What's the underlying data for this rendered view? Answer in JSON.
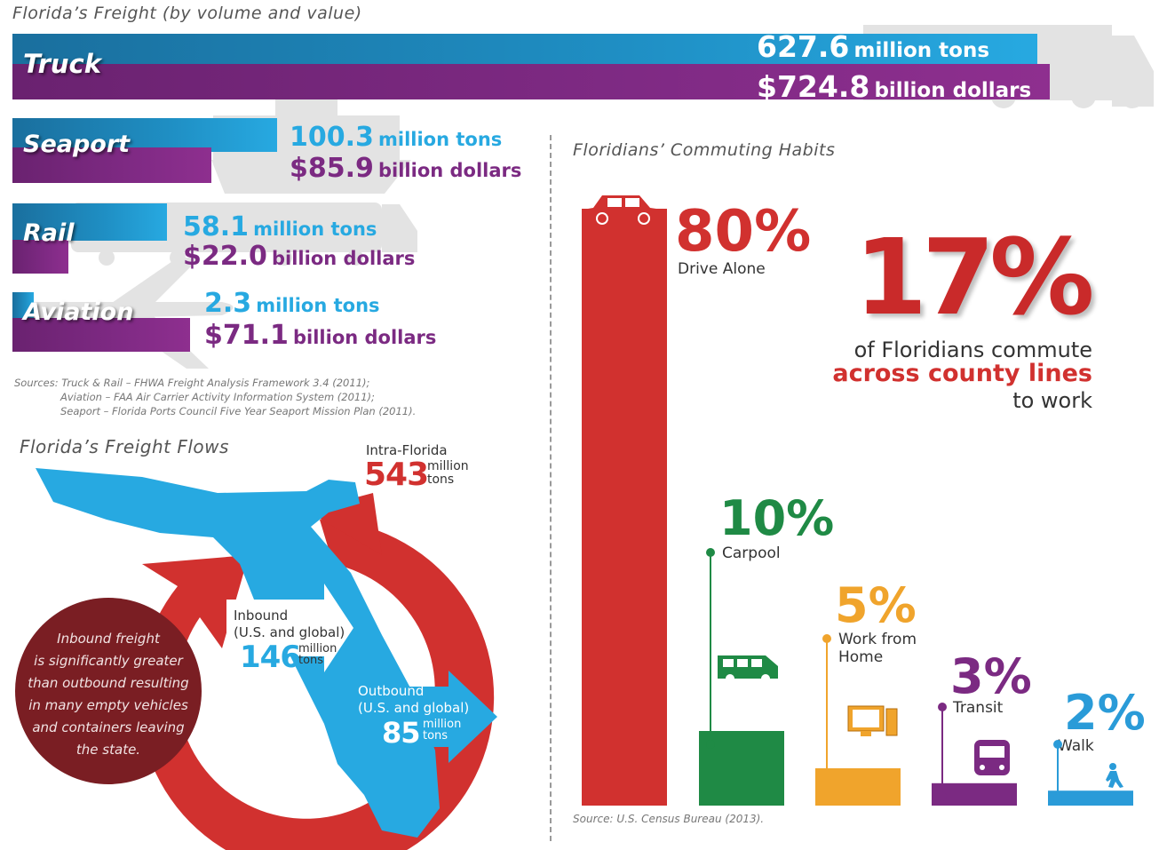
{
  "freight": {
    "title": "Florida’s Freight (by volume and value)",
    "modes": [
      {
        "name": "Truck",
        "tons_num": "627.6",
        "tons_unit": "million tons",
        "dollars_num": "$724.8",
        "dollars_unit": "billion dollars"
      },
      {
        "name": "Seaport",
        "tons_num": "100.3",
        "tons_unit": "million tons",
        "dollars_num": "$85.9",
        "dollars_unit": "billion dollars"
      },
      {
        "name": "Rail",
        "tons_num": "58.1",
        "tons_unit": "million tons",
        "dollars_num": "$22.0",
        "dollars_unit": "billion dollars"
      },
      {
        "name": "Aviation",
        "tons_num": "2.3",
        "tons_unit": "million tons",
        "dollars_num": "$71.1",
        "dollars_unit": "billion dollars"
      }
    ],
    "sources": [
      "Sources: Truck & Rail – FHWA Freight Analysis Framework 3.4 (2011);",
      "Aviation – FAA Air Carrier Activity Information System (2011);",
      "Seaport – Florida Ports Council Five Year Seaport Mission Plan (2011)."
    ]
  },
  "flows": {
    "title": "Florida’s Freight Flows",
    "intra_label": "Intra-Florida",
    "intra_value": "543",
    "intra_unit_1": "million",
    "intra_unit_2": "tons",
    "inbound_label_1": "Inbound",
    "inbound_label_2": "(U.S. and global)",
    "inbound_value": "146",
    "inbound_unit_1": "million",
    "inbound_unit_2": "tons",
    "outbound_label_1": "Outbound",
    "outbound_label_2": "(U.S. and global)",
    "outbound_value": "85",
    "outbound_unit_1": "million",
    "outbound_unit_2": "tons",
    "note_lines": [
      "Inbound freight",
      "is significantly greater",
      "than outbound resulting",
      "in many empty vehicles",
      "and containers leaving",
      "the state."
    ]
  },
  "commute": {
    "title": "Floridians’ Commuting Habits",
    "headline_pct": "17%",
    "headline_line1": "of Floridians commute",
    "headline_line2": "across county lines",
    "headline_line3": "to work",
    "source": "Source: U.S. Census Bureau (2013)."
  },
  "colors": {
    "blue": "#27a9e1",
    "purple": "#7b2a82",
    "red": "#d1312f",
    "green": "#1f8a45",
    "orange": "#f0a42c",
    "walk_blue": "#2a9bd8",
    "note_bg": "#7a1e23"
  },
  "chart_data": [
    {
      "type": "bar",
      "title": "Florida’s Freight (by volume and value)",
      "categories": [
        "Truck",
        "Seaport",
        "Rail",
        "Aviation"
      ],
      "series": [
        {
          "name": "million tons",
          "values": [
            627.6,
            100.3,
            58.1,
            2.3
          ]
        },
        {
          "name": "billion dollars",
          "values": [
            724.8,
            85.9,
            22.0,
            71.1
          ]
        }
      ]
    },
    {
      "type": "bar",
      "title": "Floridians’ Commuting Habits",
      "categories": [
        "Drive Alone",
        "Carpool",
        "Work from Home",
        "Transit",
        "Walk"
      ],
      "values": [
        80,
        10,
        5,
        3,
        2
      ],
      "value_labels": [
        "80%",
        "10%",
        "5%",
        "3%",
        "2%"
      ],
      "colors": [
        "#d1312f",
        "#1f8a45",
        "#f0a42c",
        "#7b2a82",
        "#2a9bd8"
      ],
      "icons": [
        "car-icon",
        "van-icon",
        "computer-icon",
        "bus-icon",
        "pedestrian-icon"
      ]
    }
  ]
}
